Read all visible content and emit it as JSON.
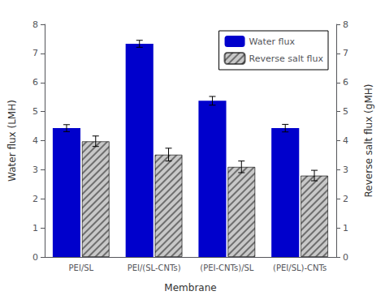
{
  "chart_data": {
    "type": "bar",
    "categories": [
      "PEI/SL",
      "PEI/(SL-CNTs)",
      "(PEI-CNTs)/SL",
      "(PEI/SL)-CNTs"
    ],
    "xlabel": "Membrane",
    "ylabel": "Water flux (LMH)",
    "y2label": "Reverse salt flux (gMH)",
    "series": [
      {
        "name": "Water flux",
        "color": "#0000CC",
        "values": [
          4.43,
          7.33,
          5.37,
          4.43
        ],
        "errors": [
          0.12,
          0.12,
          0.15,
          0.13
        ]
      },
      {
        "name": "Reverse salt flux",
        "color": "#C8C8C8",
        "axis": "y2",
        "values": [
          3.98,
          3.52,
          3.1,
          2.8
        ],
        "errors": [
          0.18,
          0.22,
          0.2,
          0.18
        ]
      }
    ],
    "ylim": [
      0,
      8
    ],
    "yticks": [
      0,
      1,
      2,
      3,
      4,
      5,
      6,
      7,
      8
    ],
    "y2lim": [
      0,
      8
    ],
    "y2ticks": [
      0,
      1,
      2,
      3,
      4,
      5,
      6,
      7,
      8
    ],
    "grid": false,
    "legend": "upper right"
  }
}
